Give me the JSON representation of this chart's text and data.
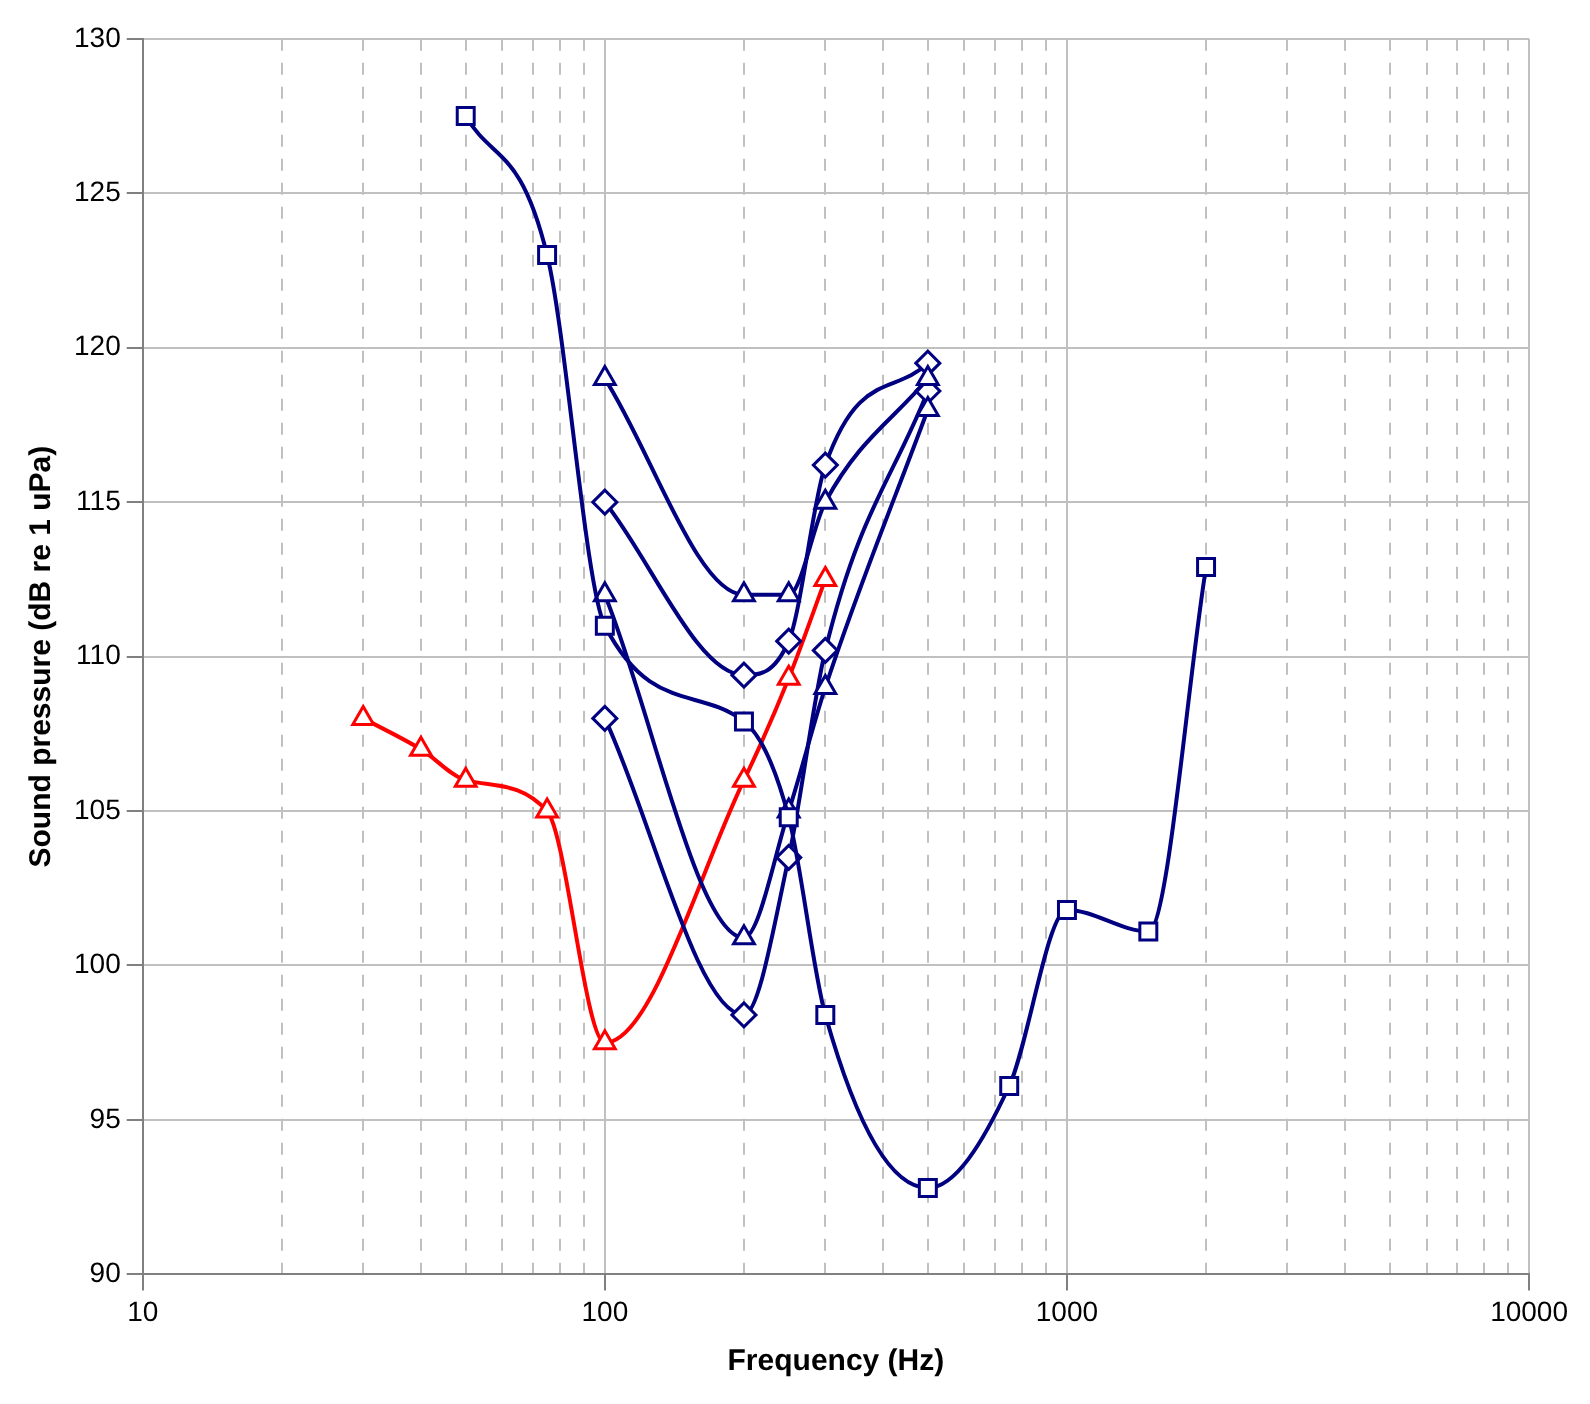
{
  "chart_data": {
    "type": "line",
    "xlabel": "Frequency (Hz)",
    "ylabel": "Sound pressure (dB re 1 uPa)",
    "log": "x",
    "grid": true,
    "legend": false,
    "xlim": [
      10,
      10000
    ],
    "xticks": [
      10,
      {
        "value": 20,
        "label": null
      },
      {
        "value": 30,
        "label": null
      },
      {
        "value": 40,
        "label": null
      },
      {
        "value": 50,
        "label": null
      },
      {
        "value": 60,
        "label": null
      },
      {
        "value": 70,
        "label": null
      },
      {
        "value": 80,
        "label": null
      },
      {
        "value": 90,
        "label": null
      },
      100,
      {
        "value": 200,
        "label": null
      },
      {
        "value": 300,
        "label": null
      },
      {
        "value": 400,
        "label": null
      },
      {
        "value": 500,
        "label": null
      },
      {
        "value": 600,
        "label": null
      },
      {
        "value": 700,
        "label": null
      },
      {
        "value": 800,
        "label": null
      },
      {
        "value": 900,
        "label": null
      },
      1000,
      {
        "value": 2000,
        "label": null
      },
      {
        "value": 3000,
        "label": null
      },
      {
        "value": 4000,
        "label": null
      },
      {
        "value": 5000,
        "label": null
      },
      {
        "value": 6000,
        "label": null
      },
      {
        "value": 7000,
        "label": null
      },
      {
        "value": 8000,
        "label": null
      },
      {
        "value": 9000,
        "label": null
      },
      10000
    ],
    "ylim": [
      90,
      130
    ],
    "yticks": [
      90,
      95,
      100,
      105,
      110,
      115,
      120,
      125,
      130
    ],
    "series": [
      {
        "color": "#000080",
        "marker": "square",
        "x": [
          50,
          75,
          100,
          200,
          250,
          300,
          500,
          750,
          1000,
          1500,
          2000
        ],
        "values": [
          127.5,
          123,
          111,
          107.9,
          104.8,
          98.4,
          92.8,
          96.1,
          101.8,
          101.1,
          112.9
        ]
      },
      {
        "color": "#000080",
        "marker": "triangle",
        "x": [
          100,
          200,
          250,
          300,
          500
        ],
        "values": [
          119,
          112,
          112,
          115,
          119
        ]
      },
      {
        "color": "#000080",
        "marker": "diamond",
        "x": [
          100,
          200,
          250,
          300,
          500
        ],
        "values": [
          115,
          109.4,
          110.5,
          116.2,
          119.5
        ]
      },
      {
        "color": "#000080",
        "marker": "triangle",
        "x": [
          100,
          200,
          250,
          300,
          500
        ],
        "values": [
          112,
          100.9,
          105,
          109,
          118
        ]
      },
      {
        "color": "#000080",
        "marker": "diamond",
        "x": [
          100,
          200,
          250,
          300,
          500
        ],
        "values": [
          108,
          98.4,
          103.5,
          110.2,
          118.6
        ]
      },
      {
        "color": "#ff0000",
        "marker": "triangle",
        "x": [
          30,
          40,
          50,
          75,
          100,
          200,
          250,
          300
        ],
        "values": [
          108,
          107,
          106,
          105,
          97.5,
          106,
          109.3,
          112.5
        ]
      }
    ]
  }
}
